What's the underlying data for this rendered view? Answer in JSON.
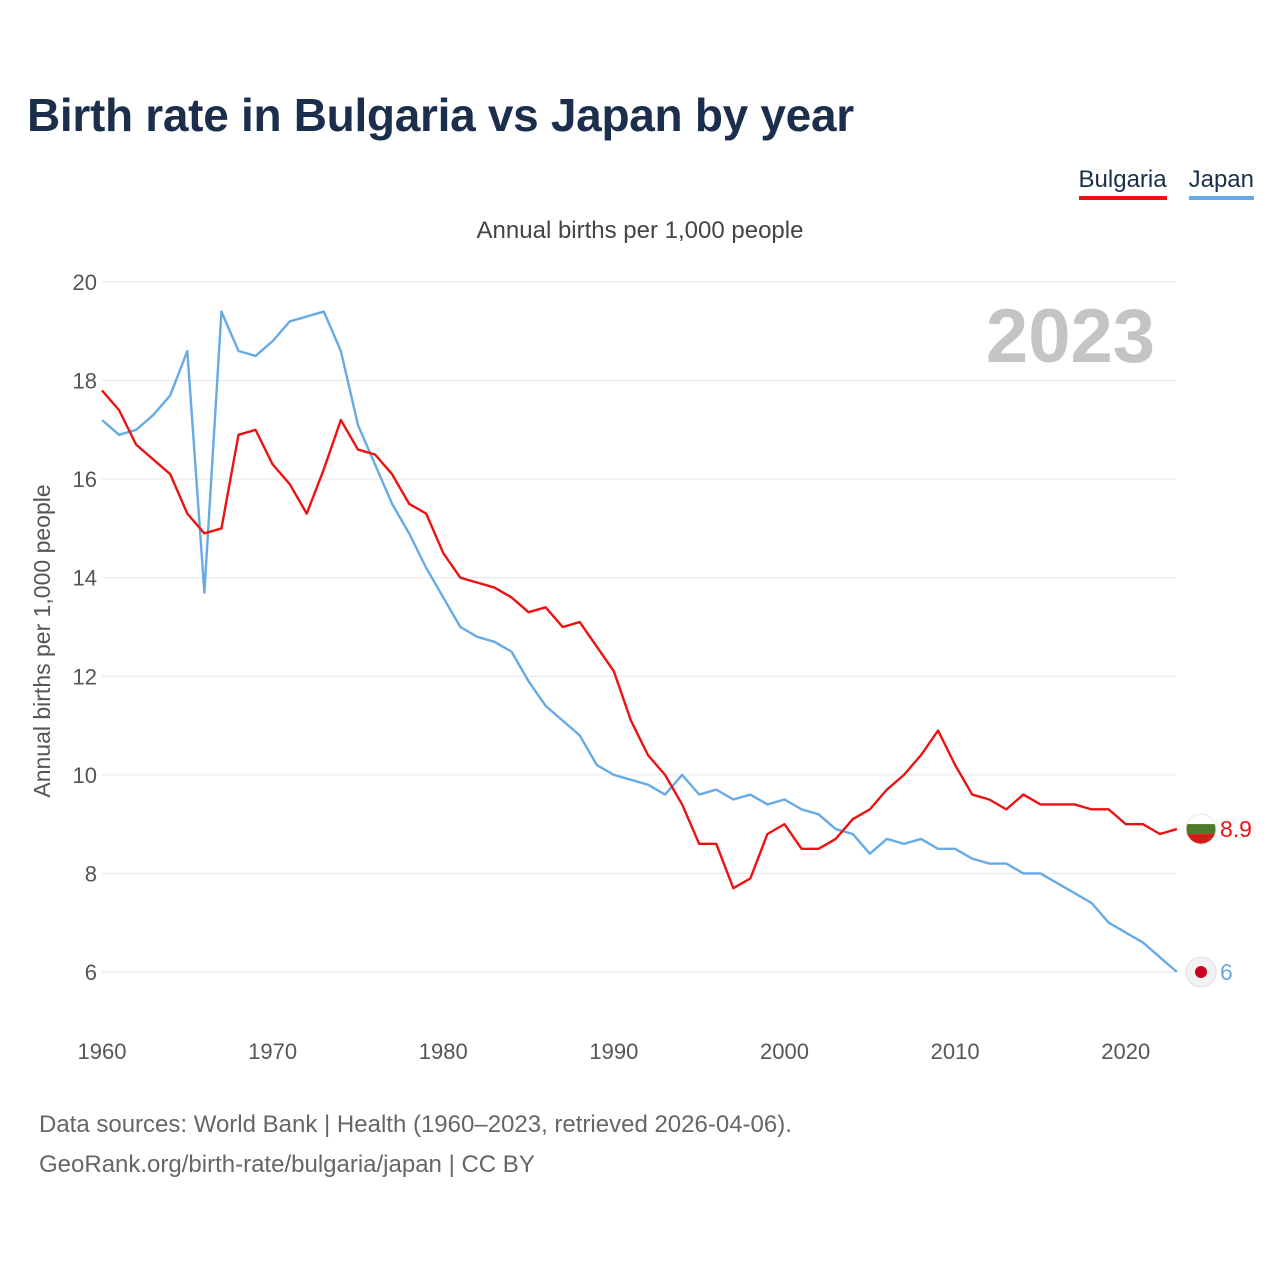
{
  "title": "Birth rate in Bulgaria vs Japan by year",
  "legend": [
    {
      "label": "Bulgaria",
      "color": "#ee1111"
    },
    {
      "label": "Japan",
      "color": "#66aae6"
    }
  ],
  "footer": {
    "line1": "Data sources: World Bank | Health (1960–2023, retrieved 2026-04-06).",
    "line2": "GeoRank.org/birth-rate/bulgaria/japan | CC BY"
  },
  "chart_data": {
    "type": "line",
    "title": "Birth rate in Bulgaria vs Japan by year",
    "subtitle": "Annual births per 1,000 people",
    "xlabel": "",
    "ylabel": "Annual births per 1,000 people",
    "year_label": "2023",
    "xlim": [
      1960,
      2023
    ],
    "ylim": [
      5,
      20
    ],
    "x_ticks": [
      1960,
      1970,
      1980,
      1990,
      2000,
      2010,
      2020
    ],
    "y_ticks": [
      6,
      8,
      10,
      12,
      14,
      16,
      18,
      20
    ],
    "grid": true,
    "x": [
      1960,
      1961,
      1962,
      1963,
      1964,
      1965,
      1966,
      1967,
      1968,
      1969,
      1970,
      1971,
      1972,
      1973,
      1974,
      1975,
      1976,
      1977,
      1978,
      1979,
      1980,
      1981,
      1982,
      1983,
      1984,
      1985,
      1986,
      1987,
      1988,
      1989,
      1990,
      1991,
      1992,
      1993,
      1994,
      1995,
      1996,
      1997,
      1998,
      1999,
      2000,
      2001,
      2002,
      2003,
      2004,
      2005,
      2006,
      2007,
      2008,
      2009,
      2010,
      2011,
      2012,
      2013,
      2014,
      2015,
      2016,
      2017,
      2018,
      2019,
      2020,
      2021,
      2022,
      2023
    ],
    "series": [
      {
        "name": "Bulgaria",
        "color": "#ee1111",
        "end_label": "8.9",
        "values": [
          17.8,
          17.4,
          16.7,
          16.4,
          16.1,
          15.3,
          14.9,
          15.0,
          16.9,
          17.0,
          16.3,
          15.9,
          15.3,
          16.2,
          17.2,
          16.6,
          16.5,
          16.1,
          15.5,
          15.3,
          14.5,
          14.0,
          13.9,
          13.8,
          13.6,
          13.3,
          13.4,
          13.0,
          13.1,
          12.6,
          12.1,
          11.1,
          10.4,
          10.0,
          9.4,
          8.6,
          8.6,
          7.7,
          7.9,
          8.8,
          9.0,
          8.5,
          8.5,
          8.7,
          9.1,
          9.3,
          9.7,
          10.0,
          10.4,
          10.9,
          10.2,
          9.6,
          9.5,
          9.3,
          9.6,
          9.4,
          9.4,
          9.4,
          9.3,
          9.3,
          9.0,
          9.0,
          8.8,
          8.9
        ]
      },
      {
        "name": "Japan",
        "color": "#66aae6",
        "end_label": "6",
        "values": [
          17.2,
          16.9,
          17.0,
          17.3,
          17.7,
          18.6,
          13.7,
          19.4,
          18.6,
          18.5,
          18.8,
          19.2,
          19.3,
          19.4,
          18.6,
          17.1,
          16.3,
          15.5,
          14.9,
          14.2,
          13.6,
          13.0,
          12.8,
          12.7,
          12.5,
          11.9,
          11.4,
          11.1,
          10.8,
          10.2,
          10.0,
          9.9,
          9.8,
          9.6,
          10.0,
          9.6,
          9.7,
          9.5,
          9.6,
          9.4,
          9.5,
          9.3,
          9.2,
          8.9,
          8.8,
          8.4,
          8.7,
          8.6,
          8.7,
          8.5,
          8.5,
          8.3,
          8.2,
          8.2,
          8.0,
          8.0,
          7.8,
          7.6,
          7.4,
          7.0,
          6.8,
          6.6,
          6.3,
          6.0
        ]
      }
    ]
  }
}
